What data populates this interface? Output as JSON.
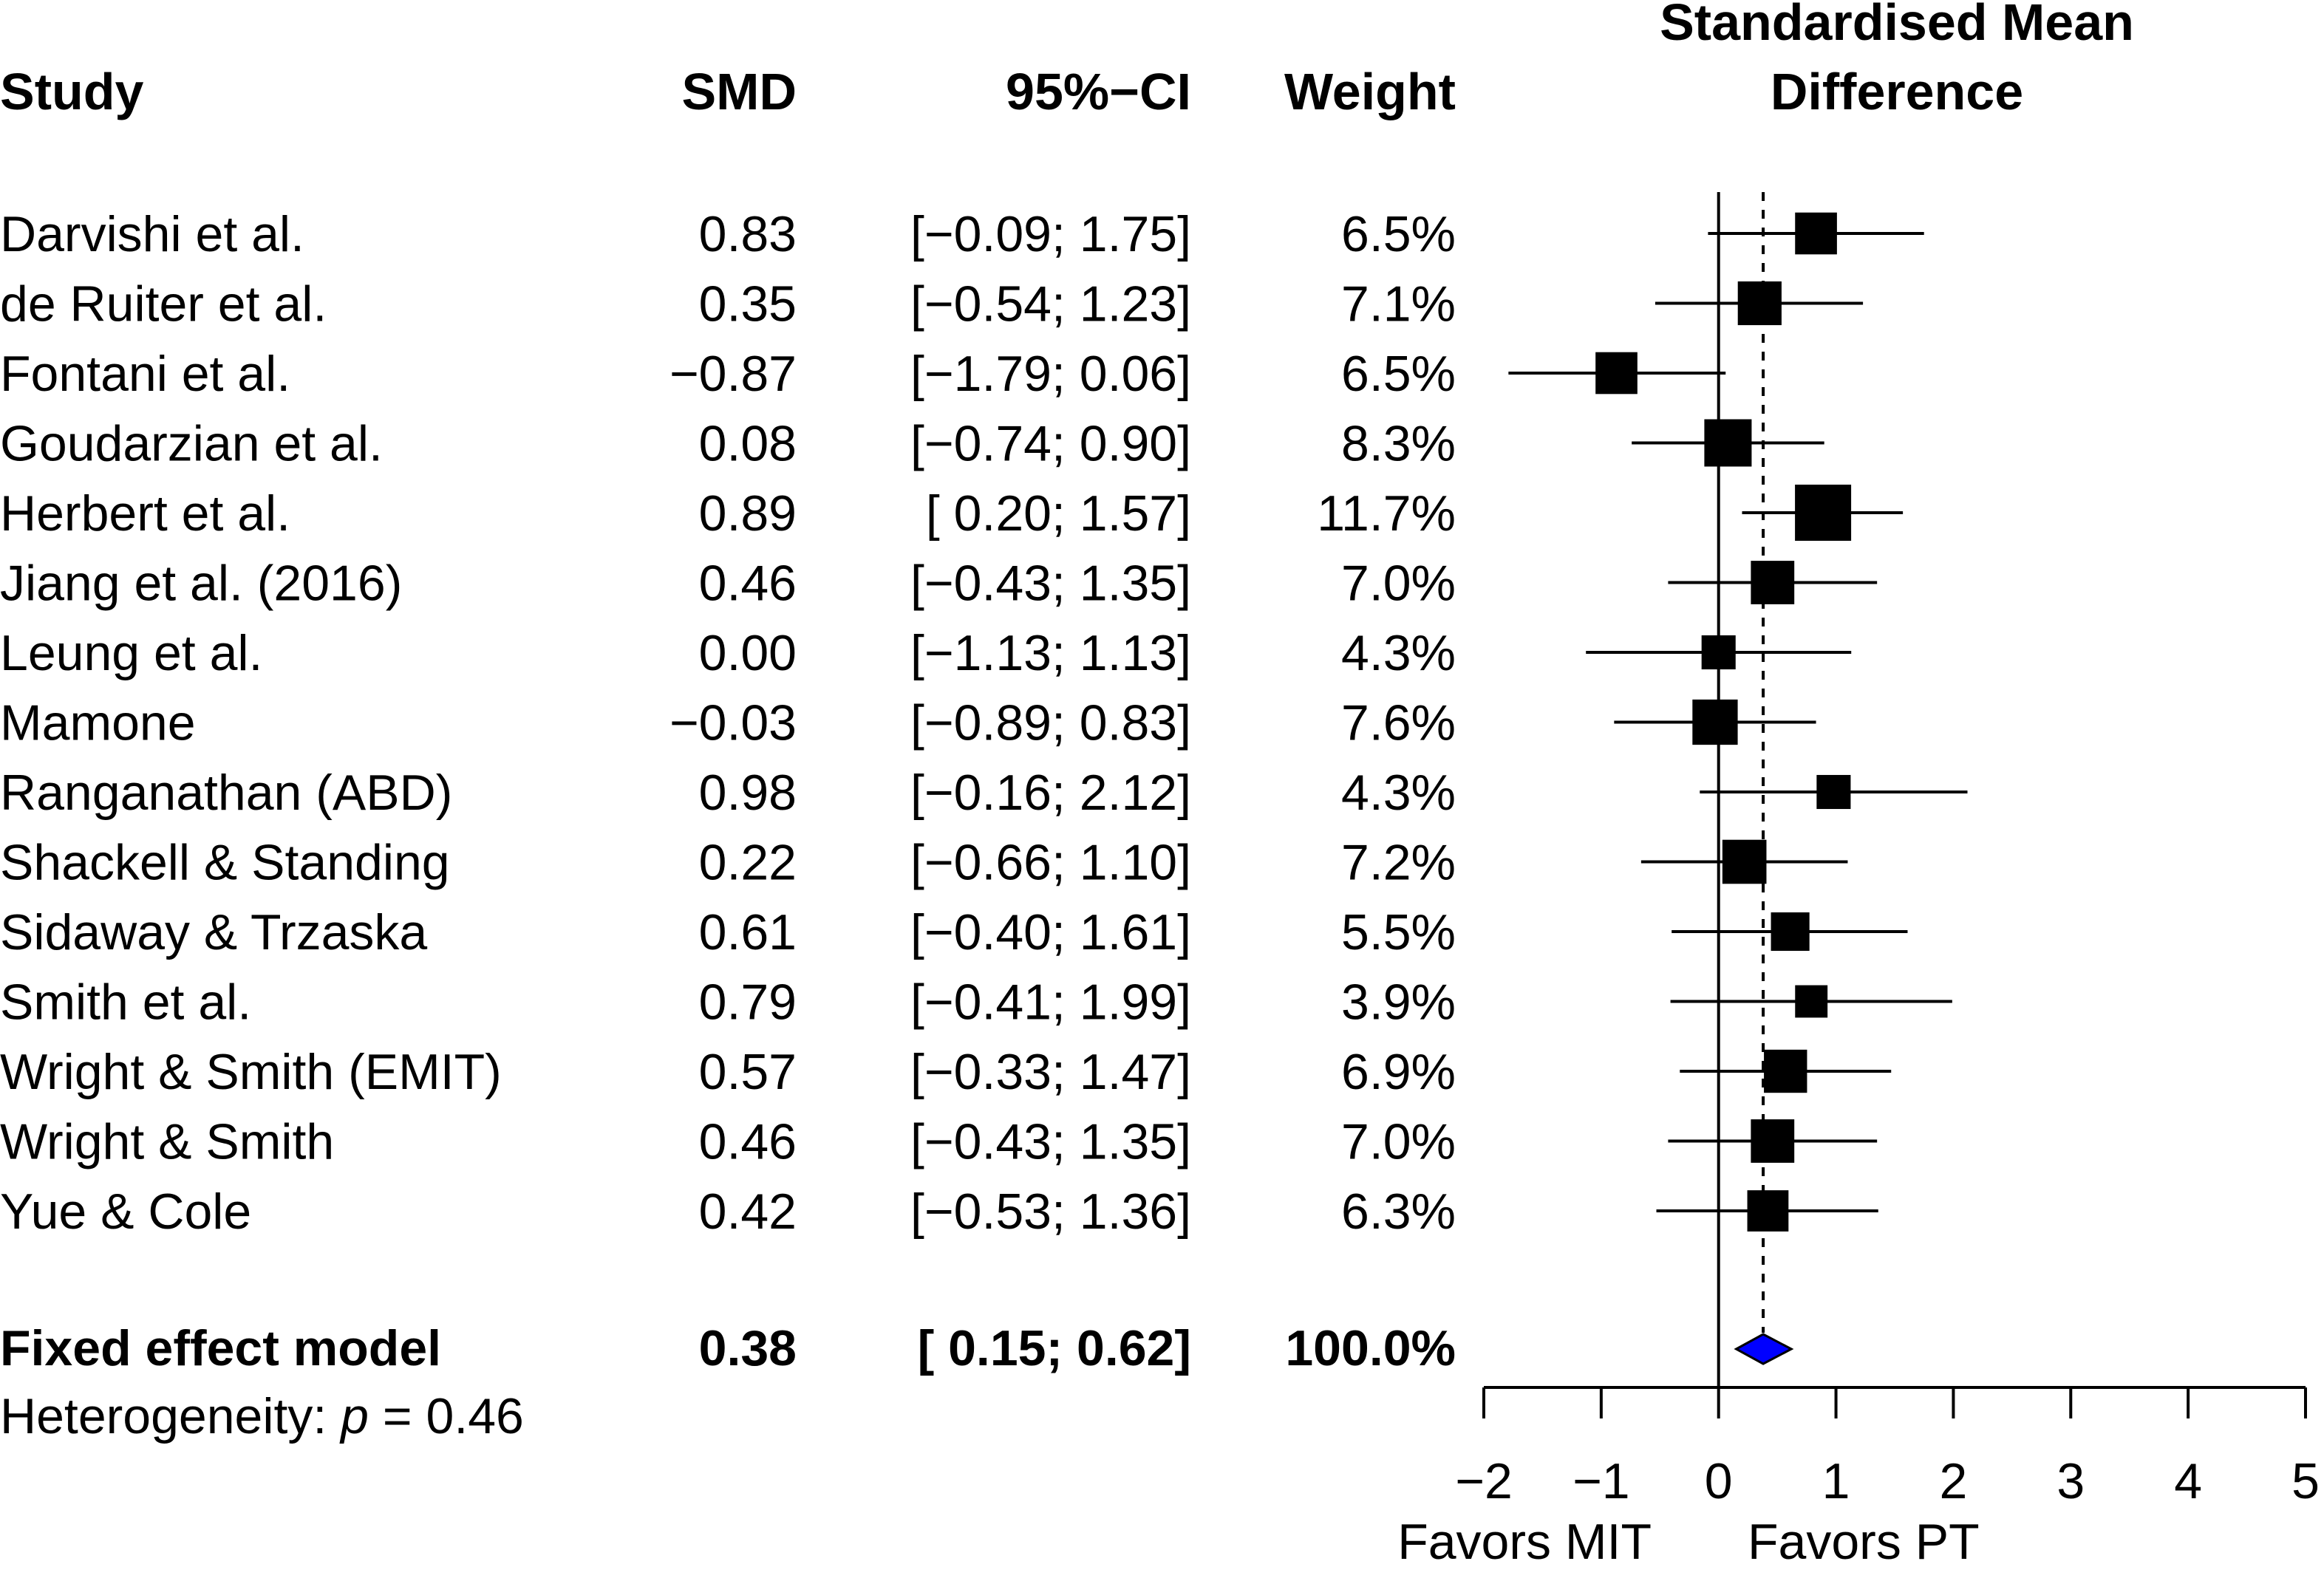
{
  "chart_data": {
    "type": "forest",
    "title": "Standardised Mean Difference",
    "title_lines": [
      "Standardised Mean",
      "Difference"
    ],
    "columns": {
      "study": "Study",
      "smd": "SMD",
      "ci": "95%−CI",
      "weight": "Weight"
    },
    "studies": [
      {
        "name": "Darvishi et al.",
        "smd": 0.83,
        "lower": -0.09,
        "upper": 1.75,
        "weight": 6.5,
        "smd_text": "0.83",
        "ci_text": "[−0.09; 1.75]",
        "weight_text": "6.5%"
      },
      {
        "name": "de Ruiter et al.",
        "smd": 0.35,
        "lower": -0.54,
        "upper": 1.23,
        "weight": 7.1,
        "smd_text": "0.35",
        "ci_text": "[−0.54; 1.23]",
        "weight_text": "7.1%"
      },
      {
        "name": "Fontani et al.",
        "smd": -0.87,
        "lower": -1.79,
        "upper": 0.06,
        "weight": 6.5,
        "smd_text": "−0.87",
        "ci_text": "[−1.79; 0.06]",
        "weight_text": "6.5%"
      },
      {
        "name": "Goudarzian et al.",
        "smd": 0.08,
        "lower": -0.74,
        "upper": 0.9,
        "weight": 8.3,
        "smd_text": "0.08",
        "ci_text": "[−0.74; 0.90]",
        "weight_text": "8.3%"
      },
      {
        "name": "Herbert et al.",
        "smd": 0.89,
        "lower": 0.2,
        "upper": 1.57,
        "weight": 11.7,
        "smd_text": "0.89",
        "ci_text": "[ 0.20; 1.57]",
        "weight_text": "11.7%"
      },
      {
        "name": "Jiang et al. (2016)",
        "smd": 0.46,
        "lower": -0.43,
        "upper": 1.35,
        "weight": 7.0,
        "smd_text": "0.46",
        "ci_text": "[−0.43; 1.35]",
        "weight_text": "7.0%"
      },
      {
        "name": "Leung et al.",
        "smd": 0.0,
        "lower": -1.13,
        "upper": 1.13,
        "weight": 4.3,
        "smd_text": "0.00",
        "ci_text": "[−1.13; 1.13]",
        "weight_text": "4.3%"
      },
      {
        "name": "Mamone",
        "smd": -0.03,
        "lower": -0.89,
        "upper": 0.83,
        "weight": 7.6,
        "smd_text": "−0.03",
        "ci_text": "[−0.89; 0.83]",
        "weight_text": "7.6%"
      },
      {
        "name": "Ranganathan (ABD)",
        "smd": 0.98,
        "lower": -0.16,
        "upper": 2.12,
        "weight": 4.3,
        "smd_text": "0.98",
        "ci_text": "[−0.16; 2.12]",
        "weight_text": "4.3%"
      },
      {
        "name": "Shackell & Standing",
        "smd": 0.22,
        "lower": -0.66,
        "upper": 1.1,
        "weight": 7.2,
        "smd_text": "0.22",
        "ci_text": "[−0.66; 1.10]",
        "weight_text": "7.2%"
      },
      {
        "name": "Sidaway & Trzaska",
        "smd": 0.61,
        "lower": -0.4,
        "upper": 1.61,
        "weight": 5.5,
        "smd_text": "0.61",
        "ci_text": "[−0.40; 1.61]",
        "weight_text": "5.5%"
      },
      {
        "name": "Smith et al.",
        "smd": 0.79,
        "lower": -0.41,
        "upper": 1.99,
        "weight": 3.9,
        "smd_text": "0.79",
        "ci_text": "[−0.41; 1.99]",
        "weight_text": "3.9%"
      },
      {
        "name": "Wright & Smith (EMIT)",
        "smd": 0.57,
        "lower": -0.33,
        "upper": 1.47,
        "weight": 6.9,
        "smd_text": "0.57",
        "ci_text": "[−0.33; 1.47]",
        "weight_text": "6.9%"
      },
      {
        "name": "Wright & Smith",
        "smd": 0.46,
        "lower": -0.43,
        "upper": 1.35,
        "weight": 7.0,
        "smd_text": "0.46",
        "ci_text": "[−0.43; 1.35]",
        "weight_text": "7.0%"
      },
      {
        "name": "Yue & Cole",
        "smd": 0.42,
        "lower": -0.53,
        "upper": 1.36,
        "weight": 6.3,
        "smd_text": "0.42",
        "ci_text": "[−0.53; 1.36]",
        "weight_text": "6.3%"
      }
    ],
    "pooled": {
      "name": "Fixed effect model",
      "smd": 0.38,
      "lower": 0.15,
      "upper": 0.62,
      "weight": 100.0,
      "smd_text": "0.38",
      "ci_text": "[ 0.15; 0.62]",
      "weight_text": "100.0%"
    },
    "heterogeneity": {
      "prefix": "Heterogeneity: ",
      "p_symbol": "p",
      "suffix": " = 0.46"
    },
    "x_axis": {
      "range": [
        -2,
        5
      ],
      "ticks": [
        -2,
        -1,
        0,
        1,
        2,
        3,
        4,
        5
      ],
      "tick_labels": [
        "−2",
        "−1",
        "0",
        "1",
        "2",
        "3",
        "4",
        "5"
      ],
      "null_value": 0,
      "reference_value": 0.38
    },
    "favors_left": "Favors MIT",
    "favors_right": "Favors PT",
    "colors": {
      "text": "#000000",
      "diamond_fill": "#0000ff",
      "squares": "#000000"
    }
  }
}
